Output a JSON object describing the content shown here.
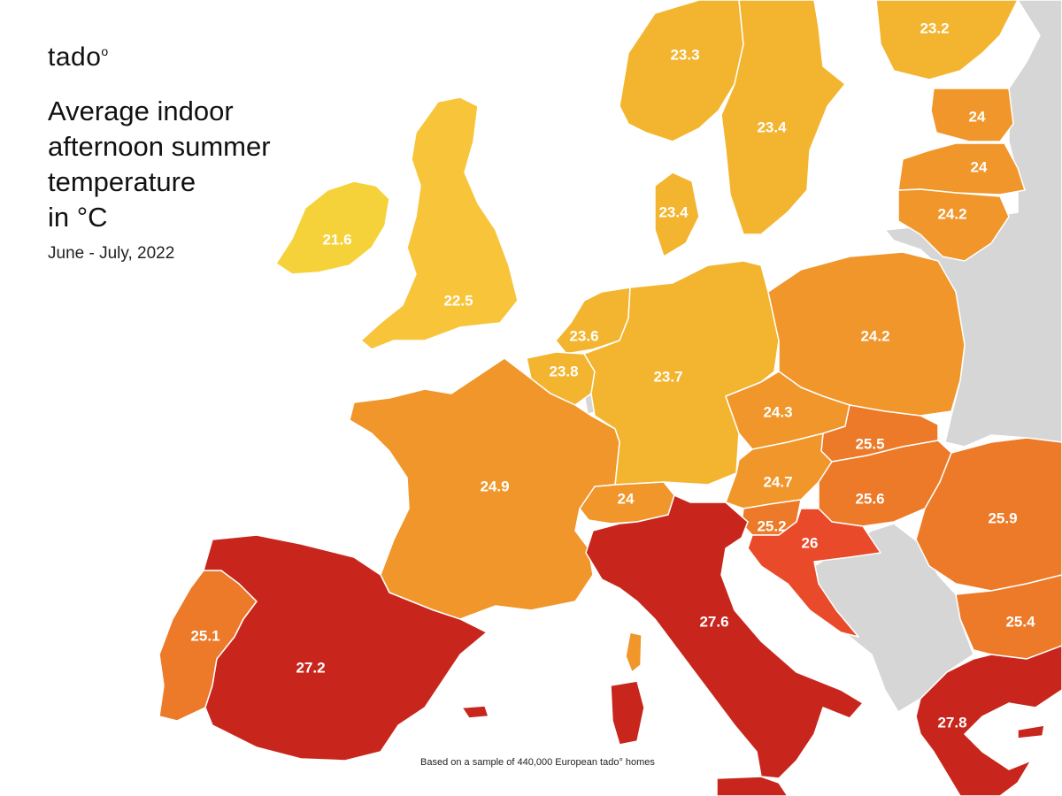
{
  "brand": {
    "name": "tado",
    "mark": "o"
  },
  "title_lines": [
    "Average indoor",
    "afternoon summer",
    "temperature",
    "in °C"
  ],
  "subtitle": "June - July, 2022",
  "footnote": "Based on a sample of 440,000 European tado° homes",
  "legend_colors": {
    "coolest": "#f6d23a",
    "cool": "#f3b52f",
    "mid": "#f0962a",
    "warm": "#ec7a29",
    "hot": "#e94a2a",
    "hottest": "#c8261c",
    "no_data": "#d6d6d6"
  },
  "regions": [
    {
      "id": "ireland",
      "value": "21.6",
      "color": "#f6d23a"
    },
    {
      "id": "uk",
      "value": "22.5",
      "color": "#f8c43a"
    },
    {
      "id": "norway",
      "value": "23.3",
      "color": "#f3b52f"
    },
    {
      "id": "sweden",
      "value": "23.4",
      "color": "#f3b52f"
    },
    {
      "id": "finland",
      "value": "23.2",
      "color": "#f3b52f"
    },
    {
      "id": "denmark",
      "value": "23.4",
      "color": "#f3b52f"
    },
    {
      "id": "estonia",
      "value": "24",
      "color": "#f0962a"
    },
    {
      "id": "latvia",
      "value": "24",
      "color": "#f0962a"
    },
    {
      "id": "lithuania",
      "value": "24.2",
      "color": "#f0962a"
    },
    {
      "id": "netherlands",
      "value": "23.6",
      "color": "#f3b52f"
    },
    {
      "id": "belgium",
      "value": "23.8",
      "color": "#f3b52f"
    },
    {
      "id": "germany",
      "value": "23.7",
      "color": "#f3b52f"
    },
    {
      "id": "poland",
      "value": "24.2",
      "color": "#f0962a"
    },
    {
      "id": "czechia",
      "value": "24.3",
      "color": "#f0962a"
    },
    {
      "id": "slovakia",
      "value": "25.5",
      "color": "#ec7a29"
    },
    {
      "id": "austria",
      "value": "24.7",
      "color": "#f0962a"
    },
    {
      "id": "hungary",
      "value": "25.6",
      "color": "#ec7a29"
    },
    {
      "id": "romania",
      "value": "25.9",
      "color": "#ec7a29"
    },
    {
      "id": "bulgaria",
      "value": "25.4",
      "color": "#ec7a29"
    },
    {
      "id": "switzerland",
      "value": "24",
      "color": "#f0962a"
    },
    {
      "id": "slovenia",
      "value": "25.2",
      "color": "#ec7a29"
    },
    {
      "id": "croatia",
      "value": "26",
      "color": "#e94a2a"
    },
    {
      "id": "france",
      "value": "24.9",
      "color": "#f0962a"
    },
    {
      "id": "portugal",
      "value": "25.1",
      "color": "#ec7a29"
    },
    {
      "id": "spain",
      "value": "27.2",
      "color": "#c8261c"
    },
    {
      "id": "italy",
      "value": "27.6",
      "color": "#c8261c"
    },
    {
      "id": "greece",
      "value": "27.8",
      "color": "#c8261c"
    }
  ]
}
